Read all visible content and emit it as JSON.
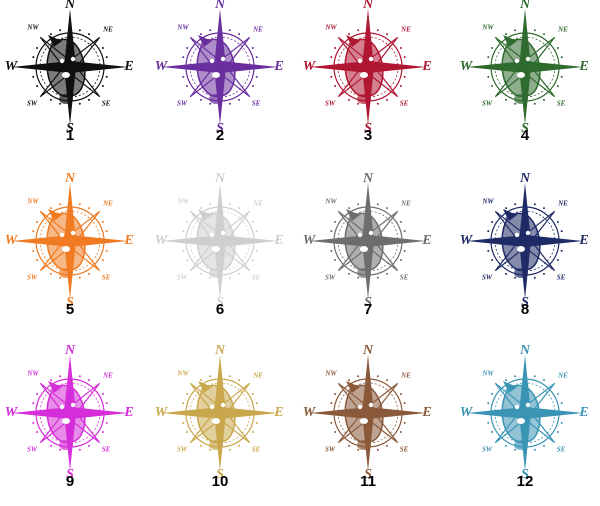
{
  "items": [
    {
      "number": "1",
      "color": "#111111"
    },
    {
      "number": "2",
      "color": "#6a2f9e"
    },
    {
      "number": "3",
      "color": "#b01733"
    },
    {
      "number": "4",
      "color": "#2f6a2f"
    },
    {
      "number": "5",
      "color": "#f07b22"
    },
    {
      "number": "6",
      "color": "#cfcfcf"
    },
    {
      "number": "7",
      "color": "#6e6e6e"
    },
    {
      "number": "8",
      "color": "#1f2b66"
    },
    {
      "number": "9",
      "color": "#d62ed9"
    },
    {
      "number": "10",
      "color": "#c9a74c"
    },
    {
      "number": "11",
      "color": "#8a5a3b"
    },
    {
      "number": "12",
      "color": "#3a94b4"
    }
  ],
  "compass": {
    "n": "N",
    "e": "E",
    "s": "S",
    "w": "W",
    "nw": "NW",
    "ne": "NE",
    "sw": "SW",
    "se": "SE"
  }
}
